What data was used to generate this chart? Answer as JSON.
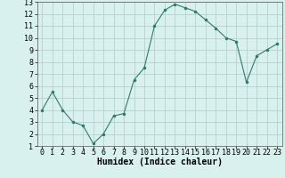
{
  "xlabel": "Humidex (Indice chaleur)",
  "x": [
    0,
    1,
    2,
    3,
    4,
    5,
    6,
    7,
    8,
    9,
    10,
    11,
    12,
    13,
    14,
    15,
    16,
    17,
    18,
    19,
    20,
    21,
    22,
    23
  ],
  "y": [
    4.0,
    5.5,
    4.0,
    3.0,
    2.7,
    1.2,
    2.0,
    3.5,
    3.7,
    6.5,
    7.5,
    11.0,
    12.3,
    12.8,
    12.5,
    12.2,
    11.5,
    10.8,
    10.0,
    9.7,
    6.3,
    8.5,
    9.0,
    9.5
  ],
  "line_color": "#2d7d6e",
  "marker": ".",
  "marker_size": 3,
  "bg_color": "#d8f0ee",
  "grid_color": "#b0ccc8",
  "xlim": [
    -0.5,
    23.5
  ],
  "ylim": [
    1,
    13
  ],
  "yticks": [
    1,
    2,
    3,
    4,
    5,
    6,
    7,
    8,
    9,
    10,
    11,
    12,
    13
  ],
  "xticks": [
    0,
    1,
    2,
    3,
    4,
    5,
    6,
    7,
    8,
    9,
    10,
    11,
    12,
    13,
    14,
    15,
    16,
    17,
    18,
    19,
    20,
    21,
    22,
    23
  ],
  "tick_label_fontsize": 6,
  "xlabel_fontsize": 7,
  "lw": 0.8
}
